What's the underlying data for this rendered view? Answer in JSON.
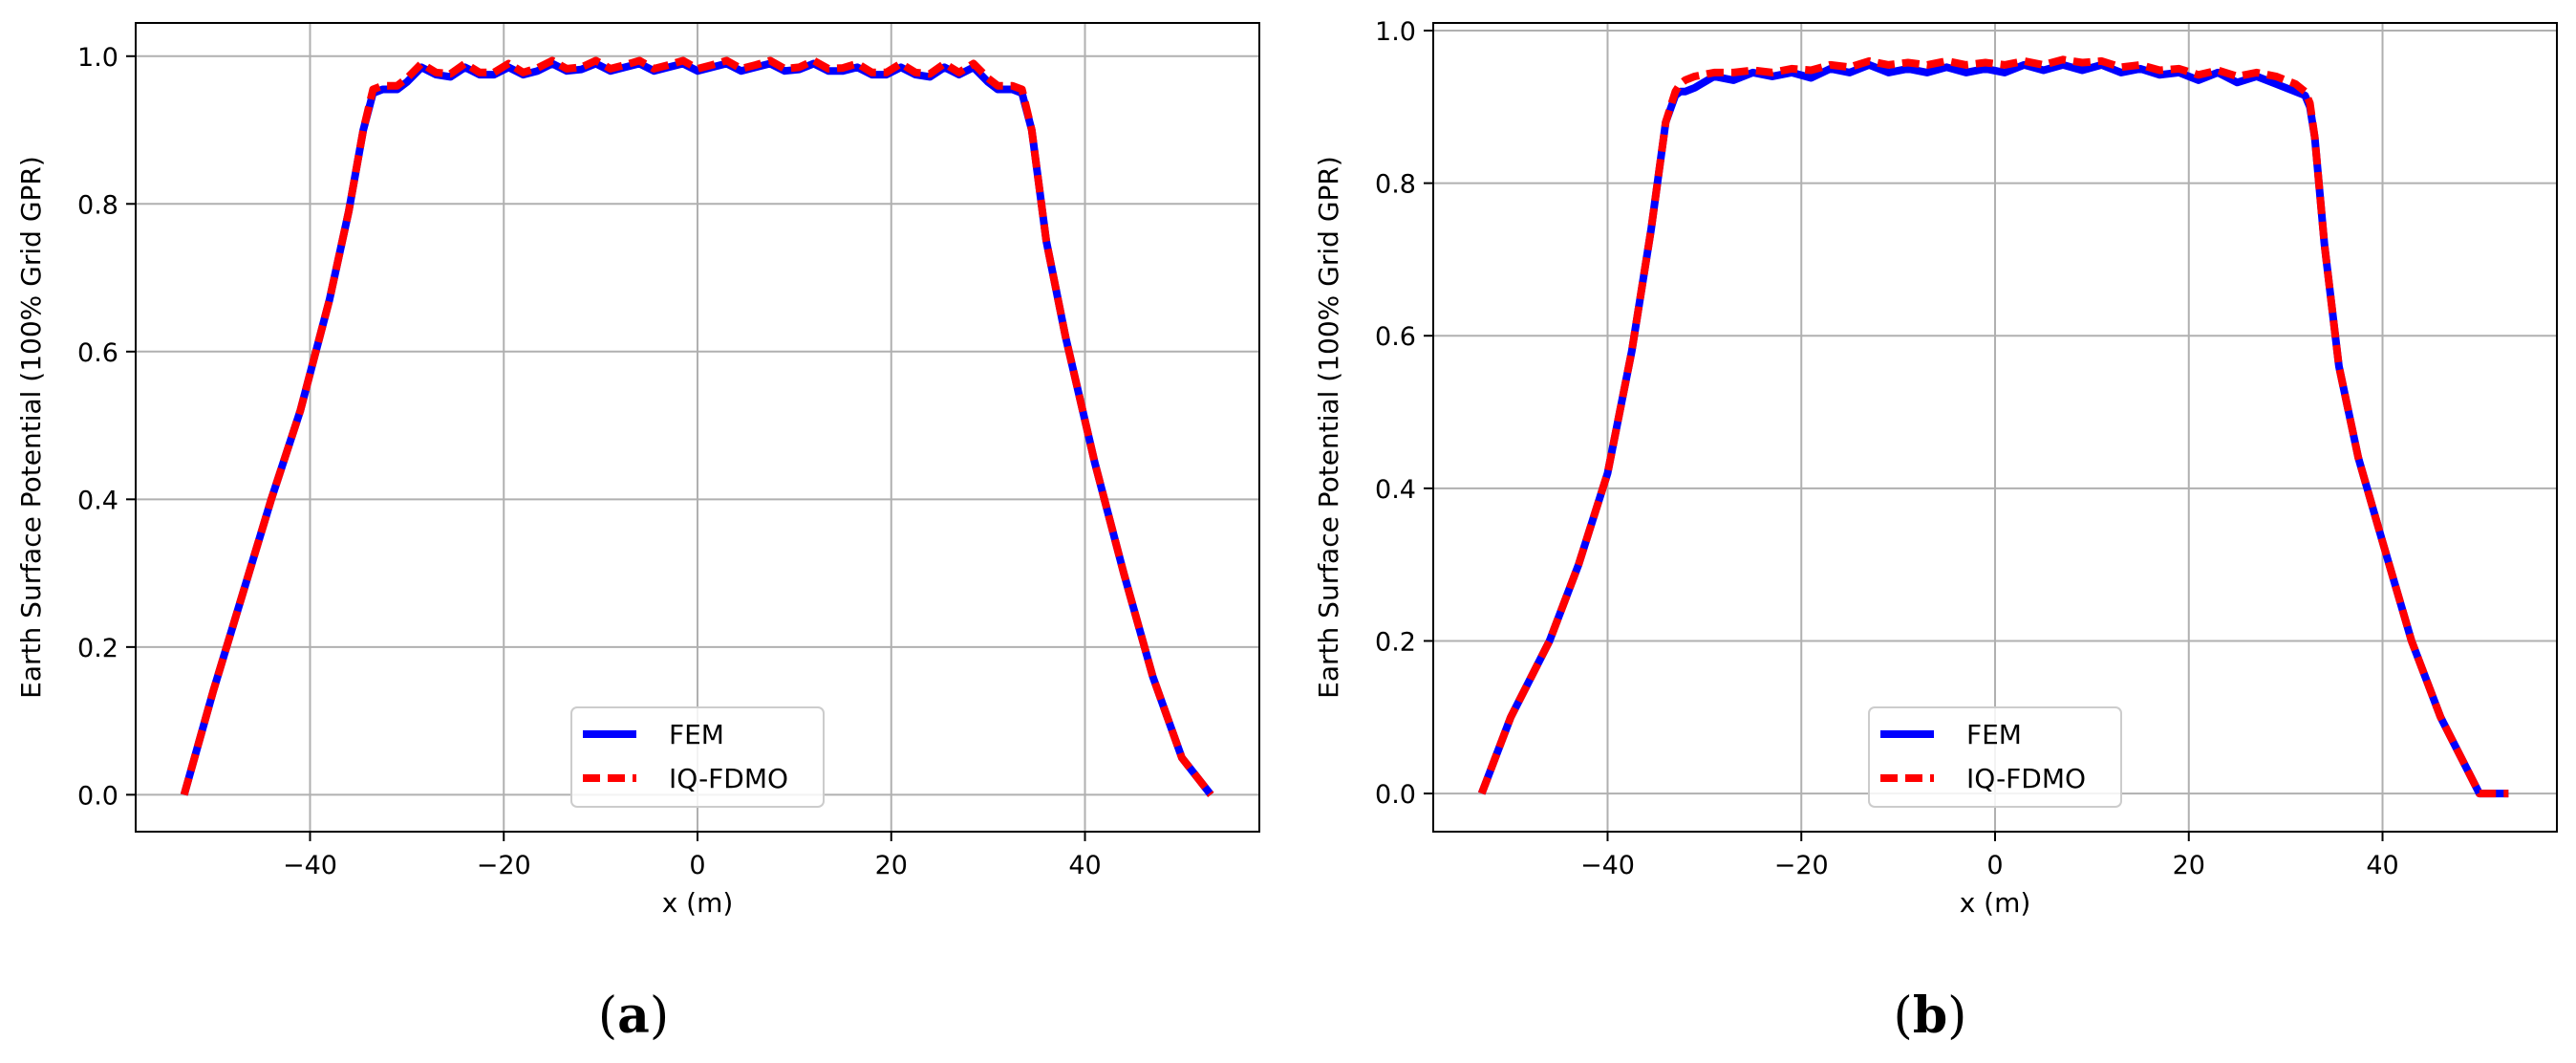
{
  "chart_data": [
    {
      "type": "line",
      "panel_label": "a",
      "xlabel": "x (m)",
      "ylabel": "Earth Surface Potential (100% Grid GPR)",
      "xlim": [
        -58,
        58
      ],
      "ylim": [
        -0.05,
        1.045
      ],
      "xticks": [
        -40,
        -20,
        0,
        20,
        40
      ],
      "xtick_labels": [
        "−40",
        "−20",
        "0",
        "20",
        "40"
      ],
      "yticks": [
        0.0,
        0.2,
        0.4,
        0.6,
        0.8,
        1.0
      ],
      "ytick_labels": [
        "0.0",
        "0.2",
        "0.4",
        "0.6",
        "0.8",
        "1.0"
      ],
      "grid": true,
      "legend_position": "lower-center",
      "series": [
        {
          "name": "FEM",
          "color": "#0000ff",
          "style": "solid",
          "x": [
            -53,
            -50,
            -47,
            -44,
            -41,
            -38,
            -36,
            -34.5,
            -33.5,
            -32.5,
            -31,
            -30,
            -28.5,
            -27,
            -25.5,
            -24,
            -22.5,
            -21,
            -19.5,
            -18,
            -16.5,
            -15,
            -13.5,
            -12,
            -10.5,
            -9,
            -7.5,
            -6,
            -4.5,
            -3,
            -1.5,
            0,
            1.5,
            3,
            4.5,
            6,
            7.5,
            9,
            10.5,
            12,
            13.5,
            15,
            16.5,
            18,
            19.5,
            21,
            22.5,
            24,
            25.5,
            27,
            28.5,
            30,
            31,
            32.5,
            33.5,
            34.5,
            36,
            38,
            41,
            44,
            47,
            50,
            53
          ],
          "y": [
            0.0,
            0.14,
            0.27,
            0.4,
            0.52,
            0.67,
            0.79,
            0.9,
            0.95,
            0.955,
            0.955,
            0.965,
            0.985,
            0.975,
            0.972,
            0.985,
            0.975,
            0.975,
            0.985,
            0.975,
            0.98,
            0.99,
            0.98,
            0.982,
            0.99,
            0.98,
            0.985,
            0.99,
            0.98,
            0.985,
            0.99,
            0.98,
            0.985,
            0.99,
            0.98,
            0.985,
            0.99,
            0.98,
            0.982,
            0.99,
            0.98,
            0.98,
            0.985,
            0.975,
            0.975,
            0.985,
            0.975,
            0.972,
            0.985,
            0.975,
            0.985,
            0.965,
            0.955,
            0.955,
            0.95,
            0.9,
            0.75,
            0.62,
            0.45,
            0.3,
            0.16,
            0.05,
            0.0
          ]
        },
        {
          "name": "IQ-FDMO",
          "color": "#ff0000",
          "style": "dashed",
          "x": [
            -53,
            -50,
            -47,
            -44,
            -41,
            -38,
            -36,
            -34.5,
            -33.5,
            -32.5,
            -31,
            -30,
            -28.5,
            -27,
            -25.5,
            -24,
            -22.5,
            -21,
            -19.5,
            -18,
            -16.5,
            -15,
            -13.5,
            -12,
            -10.5,
            -9,
            -7.5,
            -6,
            -4.5,
            -3,
            -1.5,
            0,
            1.5,
            3,
            4.5,
            6,
            7.5,
            9,
            10.5,
            12,
            13.5,
            15,
            16.5,
            18,
            19.5,
            21,
            22.5,
            24,
            25.5,
            27,
            28.5,
            30,
            31,
            32.5,
            33.5,
            34.5,
            36,
            38,
            41,
            44,
            47,
            50,
            53
          ],
          "y": [
            0.0,
            0.14,
            0.27,
            0.4,
            0.52,
            0.67,
            0.79,
            0.9,
            0.955,
            0.96,
            0.96,
            0.97,
            0.99,
            0.978,
            0.976,
            0.99,
            0.978,
            0.978,
            0.99,
            0.978,
            0.984,
            0.994,
            0.983,
            0.985,
            0.994,
            0.983,
            0.988,
            0.994,
            0.983,
            0.988,
            0.994,
            0.983,
            0.988,
            0.994,
            0.983,
            0.988,
            0.994,
            0.983,
            0.985,
            0.994,
            0.983,
            0.984,
            0.99,
            0.978,
            0.978,
            0.99,
            0.978,
            0.976,
            0.99,
            0.978,
            0.99,
            0.97,
            0.96,
            0.96,
            0.955,
            0.9,
            0.75,
            0.62,
            0.45,
            0.3,
            0.16,
            0.05,
            0.0
          ]
        }
      ]
    },
    {
      "type": "line",
      "panel_label": "b",
      "xlabel": "x (m)",
      "ylabel": "Earth Surface Potential (100% Grid GPR)",
      "xlim": [
        -58,
        58
      ],
      "ylim": [
        -0.05,
        1.01
      ],
      "xticks": [
        -40,
        -20,
        0,
        20,
        40
      ],
      "xtick_labels": [
        "−40",
        "−20",
        "0",
        "20",
        "40"
      ],
      "yticks": [
        0.0,
        0.2,
        0.4,
        0.6,
        0.8,
        1.0
      ],
      "ytick_labels": [
        "0.0",
        "0.2",
        "0.4",
        "0.6",
        "0.8",
        "1.0"
      ],
      "grid": true,
      "legend_position": "lower-center",
      "series": [
        {
          "name": "FEM",
          "color": "#0000ff",
          "style": "solid",
          "x": [
            -53,
            -50,
            -46,
            -43,
            -40,
            -37.5,
            -35.5,
            -34,
            -33,
            -32.5,
            -32,
            -31,
            -29,
            -27,
            -25,
            -23,
            -21,
            -19,
            -17,
            -15,
            -13,
            -11,
            -9,
            -7,
            -5,
            -3,
            -1,
            1,
            3,
            5,
            7,
            9,
            11,
            13,
            15,
            17,
            19,
            21,
            23,
            25,
            27,
            29,
            31,
            32,
            32.5,
            33,
            34,
            35.5,
            37.5,
            40,
            43,
            46,
            50,
            53
          ],
          "y": [
            0.0,
            0.1,
            0.2,
            0.3,
            0.42,
            0.58,
            0.74,
            0.88,
            0.915,
            0.92,
            0.92,
            0.925,
            0.94,
            0.935,
            0.945,
            0.94,
            0.945,
            0.938,
            0.95,
            0.945,
            0.955,
            0.945,
            0.95,
            0.945,
            0.952,
            0.945,
            0.95,
            0.945,
            0.955,
            0.948,
            0.955,
            0.948,
            0.955,
            0.945,
            0.95,
            0.942,
            0.945,
            0.935,
            0.945,
            0.932,
            0.94,
            0.93,
            0.92,
            0.915,
            0.9,
            0.86,
            0.72,
            0.56,
            0.44,
            0.33,
            0.2,
            0.1,
            0.0,
            0.0
          ]
        },
        {
          "name": "IQ-FDMO",
          "color": "#ff0000",
          "style": "dashed",
          "x": [
            -53,
            -50,
            -46,
            -43,
            -40,
            -37.5,
            -35.5,
            -34,
            -33,
            -32.5,
            -32,
            -31,
            -29,
            -27,
            -25,
            -23,
            -21,
            -19,
            -17,
            -15,
            -13,
            -11,
            -9,
            -7,
            -5,
            -3,
            -1,
            1,
            3,
            5,
            7,
            9,
            11,
            13,
            15,
            17,
            19,
            21,
            23,
            25,
            27,
            29,
            31,
            32,
            32.5,
            33,
            34,
            35.5,
            37.5,
            40,
            43,
            46,
            50,
            53
          ],
          "y": [
            0.0,
            0.1,
            0.2,
            0.3,
            0.42,
            0.58,
            0.74,
            0.88,
            0.92,
            0.93,
            0.935,
            0.94,
            0.945,
            0.945,
            0.948,
            0.945,
            0.95,
            0.948,
            0.955,
            0.952,
            0.96,
            0.955,
            0.958,
            0.955,
            0.96,
            0.955,
            0.958,
            0.955,
            0.96,
            0.955,
            0.962,
            0.958,
            0.96,
            0.952,
            0.955,
            0.948,
            0.95,
            0.942,
            0.948,
            0.94,
            0.945,
            0.94,
            0.93,
            0.92,
            0.905,
            0.86,
            0.72,
            0.56,
            0.44,
            0.33,
            0.2,
            0.1,
            0.0,
            0.0
          ]
        }
      ]
    }
  ],
  "legend_labels": [
    "FEM",
    "IQ-FDMO"
  ],
  "captions": [
    "a",
    "b"
  ]
}
